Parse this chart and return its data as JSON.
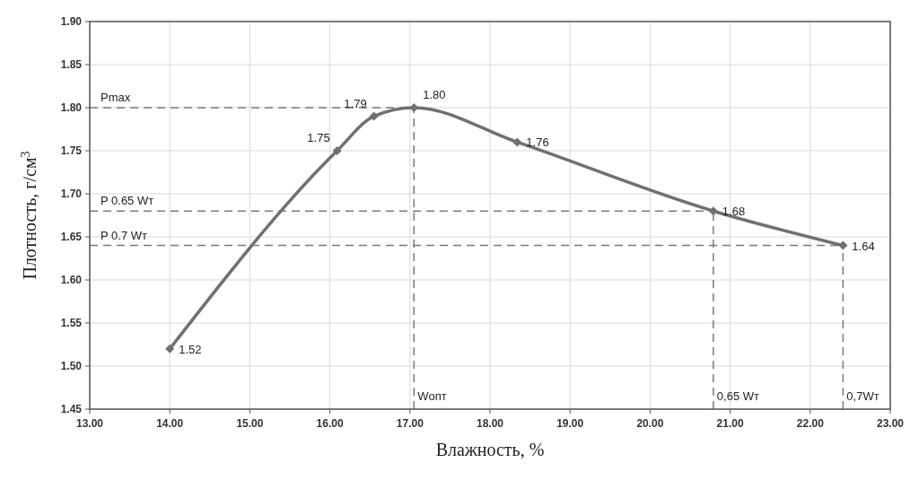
{
  "chart_data": {
    "type": "line",
    "xlabel": "Влажность, %",
    "ylabel": "Плотность, г/см$^{3}$",
    "x": [
      14.0,
      16.09,
      16.55,
      17.05,
      18.34,
      20.79,
      22.41
    ],
    "series": [
      {
        "color": "#707070",
        "values": [
          1.52,
          1.75,
          1.79,
          1.8,
          1.76,
          1.68,
          1.64
        ],
        "value_labels": [
          "1.52",
          "1.75",
          "1.79",
          "1.80",
          "1.76",
          "1.68",
          "1.64"
        ]
      }
    ],
    "marker": "diamond",
    "line_style": "solid",
    "grid": true,
    "xlim": [
      13,
      23
    ],
    "ylim": [
      1.45,
      1.9
    ],
    "xticks": [
      {
        "value": 13,
        "label": "13.00"
      },
      {
        "value": 14,
        "label": "14.00"
      },
      {
        "value": 15,
        "label": "15.00"
      },
      {
        "value": 16,
        "label": "16.00"
      },
      {
        "value": 17,
        "label": "17.00"
      },
      {
        "value": 18,
        "label": "18.00"
      },
      {
        "value": 19,
        "label": "19.00"
      },
      {
        "value": 20,
        "label": "20.00"
      },
      {
        "value": 21,
        "label": "21.00"
      },
      {
        "value": 22,
        "label": "22.00"
      },
      {
        "value": 23,
        "label": "23.00"
      }
    ],
    "yticks": [
      {
        "value": 1.45,
        "label": "1.45"
      },
      {
        "value": 1.5,
        "label": "1.50"
      },
      {
        "value": 1.55,
        "label": "1.55"
      },
      {
        "value": 1.6,
        "label": "1.60"
      },
      {
        "value": 1.65,
        "label": "1.65"
      },
      {
        "value": 1.7,
        "label": "1.70"
      },
      {
        "value": 1.75,
        "label": "1.75"
      },
      {
        "value": 1.8,
        "label": "1.80"
      },
      {
        "value": 1.85,
        "label": "1.85"
      },
      {
        "value": 1.9,
        "label": "1.90"
      }
    ],
    "ref_lines": [
      {
        "axis": "y",
        "value": 1.8,
        "label": "Pmax",
        "line_style": "dashed"
      },
      {
        "axis": "y",
        "value": 1.68,
        "label": "P 0.65 Wт",
        "line_style": "dashed"
      },
      {
        "axis": "y",
        "value": 1.64,
        "label": "P 0.7 Wт",
        "line_style": "dashed"
      },
      {
        "axis": "x",
        "value": 17.05,
        "label": "Wопт",
        "line_style": "dashed"
      },
      {
        "axis": "x",
        "value": 20.79,
        "label": "0,65 Wт",
        "line_style": "dashed"
      },
      {
        "axis": "x",
        "value": 22.41,
        "label": "0,7Wт",
        "line_style": "dashed"
      }
    ]
  }
}
